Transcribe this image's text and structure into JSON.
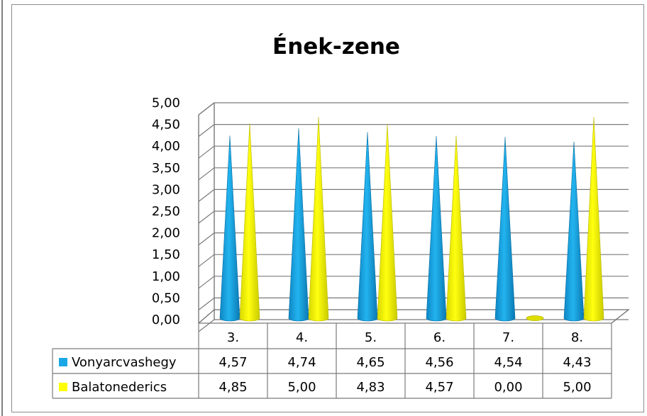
{
  "chart_data": {
    "type": "bar",
    "bar_shape": "cone",
    "title": "Ének-zene",
    "categories": [
      "3.",
      "4.",
      "5.",
      "6.",
      "7.",
      "8."
    ],
    "series": [
      {
        "name": "Vonyarcvashegy",
        "values": [
          4.57,
          4.74,
          4.65,
          4.56,
          4.54,
          4.43
        ],
        "display": [
          "4,57",
          "4,74",
          "4,65",
          "4,56",
          "4,54",
          "4,43"
        ],
        "color": "#1aa7e6"
      },
      {
        "name": "Balatonederics",
        "values": [
          4.85,
          5.0,
          4.83,
          4.57,
          0.0,
          5.0
        ],
        "display": [
          "4,85",
          "5,00",
          "4,83",
          "4,57",
          "0,00",
          "5,00"
        ],
        "color": "#ffff00"
      }
    ],
    "ylim": [
      0,
      5
    ],
    "yticks": [
      "0,00",
      "0,50",
      "1,00",
      "1,50",
      "2,00",
      "2,50",
      "3,00",
      "3,50",
      "4,00",
      "4,50",
      "5,00"
    ],
    "grid": true,
    "legend": "data-table"
  }
}
